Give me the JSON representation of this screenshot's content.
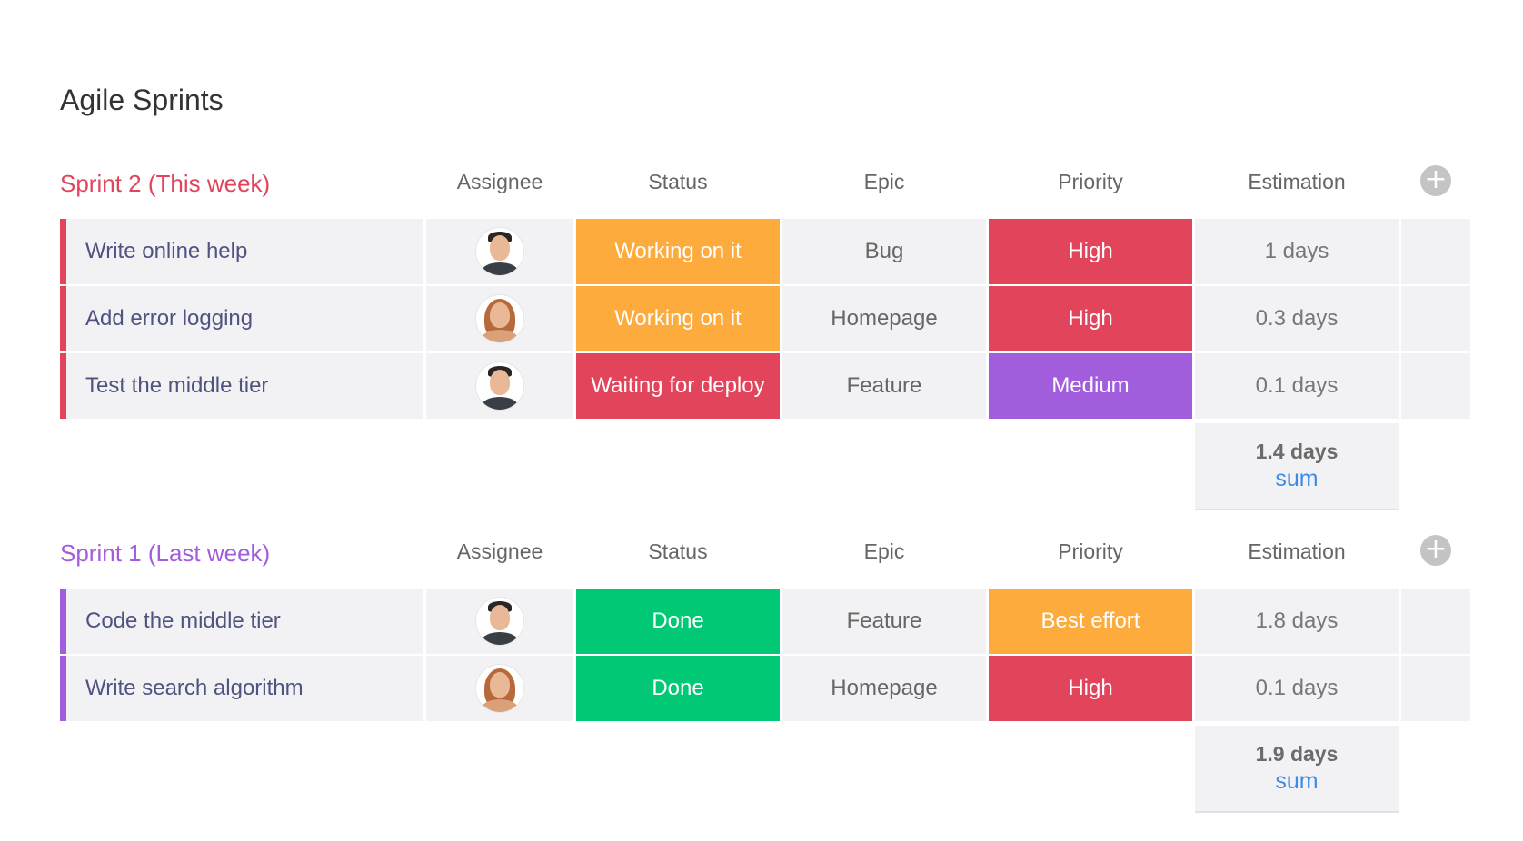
{
  "board": {
    "title": "Agile Sprints"
  },
  "colors": {
    "working_on_it": "#fdab3d",
    "waiting_for_deploy": "#e2445c",
    "done": "#00c875",
    "high": "#e2445c",
    "medium": "#a25ddc",
    "best_effort": "#fdab3d",
    "sprint2_accent": "#e2445c",
    "sprint1_accent": "#a25ddc",
    "sum_label": "#3e8be3"
  },
  "groups": [
    {
      "title": "Sprint 2 (This week)",
      "color": "#e2445c",
      "columns": [
        "Assignee",
        "Status",
        "Epic",
        "Priority",
        "Estimation"
      ],
      "add_icon": "plus-circle-icon",
      "rows": [
        {
          "name": "Write online help",
          "assignee_avatar": "male-avatar-1",
          "status": "Working on it",
          "status_color": "#fdab3d",
          "epic": "Bug",
          "priority": "High",
          "priority_color": "#e2445c",
          "estimation": "1 days"
        },
        {
          "name": "Add error logging",
          "assignee_avatar": "female-avatar",
          "status": "Working on it",
          "status_color": "#fdab3d",
          "epic": "Homepage",
          "priority": "High",
          "priority_color": "#e2445c",
          "estimation": "0.3 days"
        },
        {
          "name": "Test the middle tier",
          "assignee_avatar": "male-avatar-2",
          "status": "Waiting for deploy",
          "status_color": "#e2445c",
          "epic": "Feature",
          "priority": "Medium",
          "priority_color": "#a25ddc",
          "estimation": "0.1 days"
        }
      ],
      "summary": {
        "value": "1.4 days",
        "label": "sum"
      }
    },
    {
      "title": "Sprint 1 (Last week)",
      "color": "#a25ddc",
      "columns": [
        "Assignee",
        "Status",
        "Epic",
        "Priority",
        "Estimation"
      ],
      "add_icon": "plus-circle-icon",
      "rows": [
        {
          "name": "Code the middle tier",
          "assignee_avatar": "male-avatar-1",
          "status": "Done",
          "status_color": "#00c875",
          "epic": "Feature",
          "priority": "Best effort",
          "priority_color": "#fdab3d",
          "estimation": "1.8 days"
        },
        {
          "name": "Write search algorithm",
          "assignee_avatar": "female-avatar",
          "status": "Done",
          "status_color": "#00c875",
          "epic": "Homepage",
          "priority": "High",
          "priority_color": "#e2445c",
          "estimation": "0.1 days"
        }
      ],
      "summary": {
        "value": "1.9 days",
        "label": "sum"
      }
    }
  ]
}
